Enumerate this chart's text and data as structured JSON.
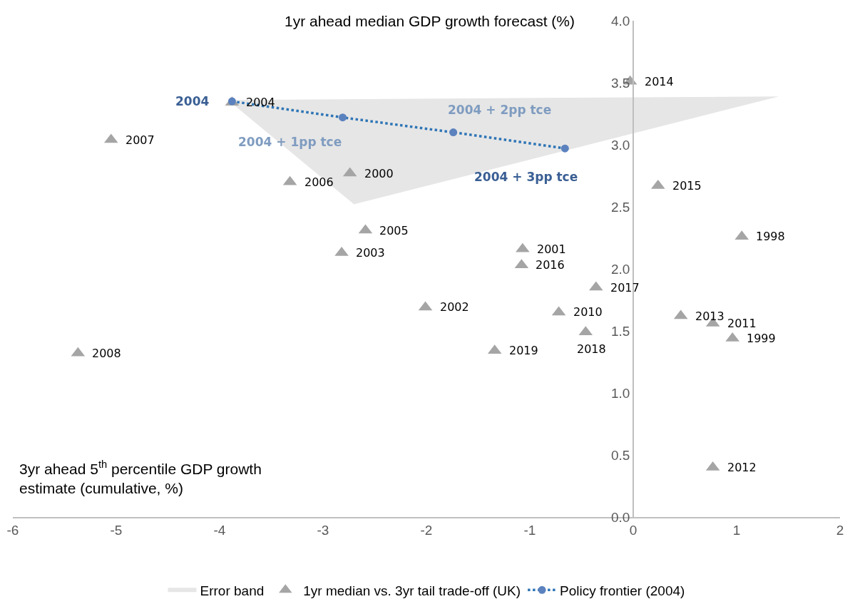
{
  "chart_data": {
    "type": "scatter",
    "xlabel": "3yr ahead 5$^{th}$ percentile GDP growth estimate (cumulative, %)",
    "ylabel": "1yr ahead median GDP growth forecast (%)",
    "xlim": [
      -6,
      2
    ],
    "xticks": [
      -6,
      -5,
      -4,
      -3,
      -2,
      -1,
      0,
      1,
      2
    ],
    "ylim": [
      0,
      4
    ],
    "yticks": [
      {
        "value": 0,
        "label": "0.0"
      },
      {
        "value": 0.5,
        "label": "0.5"
      },
      {
        "value": 1,
        "label": "1.0"
      },
      {
        "value": 1.5,
        "label": "1.5"
      },
      {
        "value": 2,
        "label": "2.0"
      },
      {
        "value": 2.5,
        "label": "2.5"
      },
      {
        "value": 3,
        "label": "3.0"
      },
      {
        "value": 3.5,
        "label": "3.5"
      },
      {
        "value": 4,
        "label": "4.0"
      }
    ],
    "legend": "bottom",
    "series": [
      {
        "type": "area",
        "name": "Error band",
        "color": "#e6e6e6",
        "x": [
          -3.92,
          1.41,
          -2.7
        ],
        "values": [
          3.36,
          3.39,
          2.52
        ]
      },
      {
        "type": "scatter",
        "name": "1yr median vs. 3yr tail trade-off (UK)",
        "color": "#a5a5a5",
        "marker": "triangle",
        "x": [
          -0.03,
          -3.88,
          -5.05,
          -2.74,
          -3.32,
          0.24,
          -2.59,
          1.05,
          -2.82,
          -1.07,
          -1.08,
          -0.36,
          -2.01,
          -0.72,
          0.46,
          0.77,
          0.96,
          -0.46,
          -1.34,
          -5.37,
          0.77
        ],
        "values": [
          3.51,
          3.34,
          3.04,
          2.77,
          2.7,
          2.67,
          2.31,
          2.26,
          2.13,
          2.16,
          2.03,
          1.85,
          1.69,
          1.65,
          1.62,
          1.56,
          1.44,
          1.49,
          1.34,
          1.32,
          0.4
        ]
      },
      {
        "type": "line",
        "name": "Policy frontier (2004)",
        "color": "#2e75b6",
        "marker": "circle",
        "line_style": "dotted",
        "x": [
          -3.88,
          -2.81,
          -1.74,
          -0.66
        ],
        "values": [
          3.35,
          3.22,
          3.1,
          2.97
        ]
      }
    ],
    "annotations": [
      {
        "text": "2014",
        "x": -0.03,
        "y": 3.51
      },
      {
        "text": "2004",
        "x": -3.88,
        "y": 3.34
      },
      {
        "text": "2007",
        "x": -5.05,
        "y": 3.04
      },
      {
        "text": "2000",
        "x": -2.74,
        "y": 2.77
      },
      {
        "text": "2006",
        "x": -3.32,
        "y": 2.7
      },
      {
        "text": "2015",
        "x": 0.24,
        "y": 2.67
      },
      {
        "text": "2005",
        "x": -2.59,
        "y": 2.31
      },
      {
        "text": "1998",
        "x": 1.05,
        "y": 2.26
      },
      {
        "text": "2003",
        "x": -2.82,
        "y": 2.13
      },
      {
        "text": "2001",
        "x": -1.07,
        "y": 2.16
      },
      {
        "text": "2016",
        "x": -1.08,
        "y": 2.03
      },
      {
        "text": "2017",
        "x": -0.36,
        "y": 1.85
      },
      {
        "text": "2002",
        "x": -2.01,
        "y": 1.69
      },
      {
        "text": "2010",
        "x": -0.72,
        "y": 1.65
      },
      {
        "text": "2013",
        "x": 0.46,
        "y": 1.62
      },
      {
        "text": "2011",
        "x": 0.77,
        "y": 1.56
      },
      {
        "text": "1999",
        "x": 0.96,
        "y": 1.44
      },
      {
        "text": "2018",
        "x": -0.46,
        "y": 1.49
      },
      {
        "text": "2019",
        "x": -1.34,
        "y": 1.34
      },
      {
        "text": "2008",
        "x": -5.37,
        "y": 1.32
      },
      {
        "text": "2012",
        "x": 0.77,
        "y": 0.4
      },
      {
        "text": "2004",
        "x": -3.88,
        "y": 3.35
      },
      {
        "text": "2004 + 1pp tce",
        "x": -2.81,
        "y": 3.22
      },
      {
        "text": "2004 + 2pp tce",
        "x": -1.74,
        "y": 3.1
      },
      {
        "text": "2004 + 3pp tce",
        "x": -0.66,
        "y": 2.97
      }
    ]
  }
}
